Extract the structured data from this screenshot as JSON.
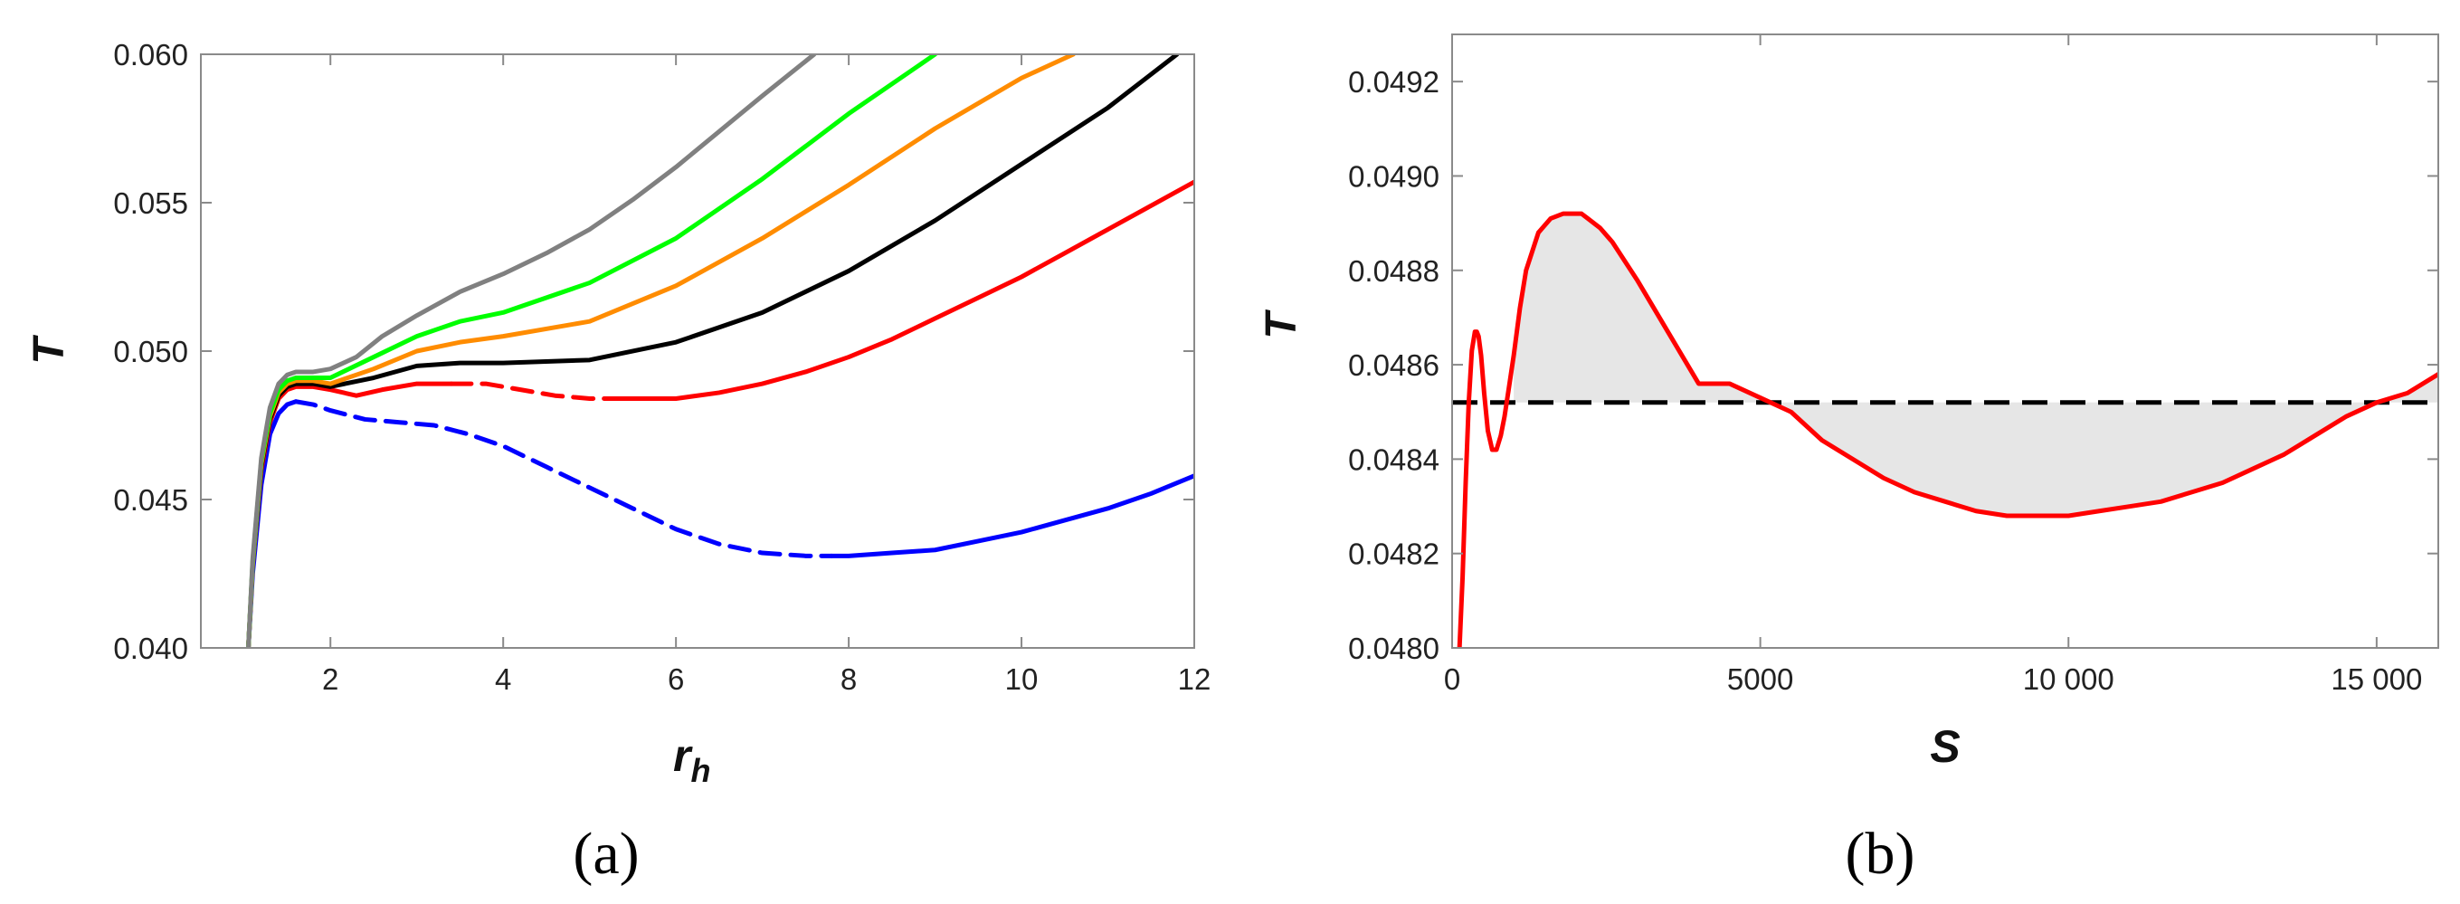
{
  "chart_data": [
    {
      "type": "line",
      "panel_label": "(a)",
      "xlabel": "r",
      "xlabel_sub": "h",
      "ylabel": "T",
      "xlim": [
        0.5,
        12
      ],
      "ylim": [
        0.04,
        0.06
      ],
      "xticks": [
        2,
        4,
        6,
        8,
        10,
        12
      ],
      "xtick_labels": [
        "2",
        "4",
        "6",
        "8",
        "10",
        "12"
      ],
      "yticks": [
        0.04,
        0.045,
        0.05,
        0.055,
        0.06
      ],
      "ytick_labels": [
        "0.040",
        "0.045",
        "0.050",
        "0.055",
        "0.060"
      ],
      "grid": false,
      "series": [
        {
          "color": "#0000ff",
          "segments": [
            {
              "style": "solid",
              "x": [
                1.05,
                1.1,
                1.2,
                1.3,
                1.4,
                1.5,
                1.6
              ],
              "y": [
                0.04,
                0.0425,
                0.0455,
                0.0472,
                0.0479,
                0.0482,
                0.0483
              ]
            },
            {
              "style": "dashed",
              "x": [
                1.6,
                1.8,
                2.0,
                2.4,
                2.8,
                3.2,
                3.6,
                4.0,
                4.5,
                5.0,
                5.5,
                6.0,
                6.5,
                7.0,
                7.5,
                7.8
              ],
              "y": [
                0.0483,
                0.0482,
                0.048,
                0.0477,
                0.0476,
                0.0475,
                0.0472,
                0.0468,
                0.0461,
                0.0454,
                0.0447,
                0.044,
                0.0435,
                0.0432,
                0.0431,
                0.0431
              ]
            },
            {
              "style": "solid",
              "x": [
                7.8,
                8.0,
                8.5,
                9.0,
                9.5,
                10.0,
                10.5,
                11.0,
                11.5,
                12.0
              ],
              "y": [
                0.0431,
                0.0431,
                0.0432,
                0.0433,
                0.0436,
                0.0439,
                0.0443,
                0.0447,
                0.0452,
                0.0458
              ]
            }
          ]
        },
        {
          "color": "#ff0000",
          "segments": [
            {
              "style": "solid",
              "x": [
                1.05,
                1.1,
                1.2,
                1.3,
                1.4,
                1.5,
                1.6,
                1.8,
                2.0,
                2.3,
                2.6,
                3.0,
                3.4
              ],
              "y": [
                0.04,
                0.0428,
                0.046,
                0.0476,
                0.0484,
                0.0487,
                0.0488,
                0.0488,
                0.0487,
                0.0485,
                0.0487,
                0.0489,
                0.0489
              ]
            },
            {
              "style": "dashed",
              "x": [
                3.4,
                3.8,
                4.2,
                4.6,
                5.0,
                5.3
              ],
              "y": [
                0.0489,
                0.0489,
                0.0487,
                0.0485,
                0.0484,
                0.0484
              ]
            },
            {
              "style": "solid",
              "x": [
                5.3,
                5.6,
                6.0,
                6.5,
                7.0,
                7.5,
                8.0,
                8.5,
                9.0,
                9.5,
                10.0,
                10.5,
                11.0,
                11.5,
                12.0
              ],
              "y": [
                0.0484,
                0.0484,
                0.0484,
                0.0486,
                0.0489,
                0.0493,
                0.0498,
                0.0504,
                0.0511,
                0.0518,
                0.0525,
                0.0533,
                0.0541,
                0.0549,
                0.0557
              ]
            }
          ]
        },
        {
          "color": "#000000",
          "segments": [
            {
              "style": "solid",
              "x": [
                1.05,
                1.1,
                1.2,
                1.3,
                1.4,
                1.5,
                1.6,
                1.8,
                2.0,
                2.5,
                3.0,
                3.5,
                4.0,
                5.0,
                6.0,
                7.0,
                8.0,
                9.0,
                10.0,
                11.0,
                11.8
              ],
              "y": [
                0.04,
                0.0428,
                0.0461,
                0.0477,
                0.0485,
                0.0488,
                0.0489,
                0.0489,
                0.0488,
                0.0491,
                0.0495,
                0.0496,
                0.0496,
                0.0497,
                0.0503,
                0.0513,
                0.0527,
                0.0544,
                0.0563,
                0.0582,
                0.06
              ]
            }
          ]
        },
        {
          "color": "#ff8c00",
          "segments": [
            {
              "style": "solid",
              "x": [
                1.05,
                1.1,
                1.2,
                1.3,
                1.4,
                1.5,
                1.6,
                1.8,
                2.0,
                2.5,
                3.0,
                3.5,
                4.0,
                5.0,
                6.0,
                7.0,
                8.0,
                9.0,
                10.0,
                10.6
              ],
              "y": [
                0.04,
                0.0428,
                0.0462,
                0.0478,
                0.0486,
                0.0489,
                0.049,
                0.049,
                0.0489,
                0.0494,
                0.05,
                0.0503,
                0.0505,
                0.051,
                0.0522,
                0.0538,
                0.0556,
                0.0575,
                0.0592,
                0.06
              ]
            }
          ]
        },
        {
          "color": "#00ff00",
          "segments": [
            {
              "style": "solid",
              "x": [
                1.05,
                1.1,
                1.2,
                1.3,
                1.4,
                1.5,
                1.6,
                1.8,
                2.0,
                2.5,
                3.0,
                3.5,
                4.0,
                5.0,
                6.0,
                7.0,
                8.0,
                9.0
              ],
              "y": [
                0.04,
                0.0429,
                0.0463,
                0.0479,
                0.0487,
                0.049,
                0.0491,
                0.0491,
                0.0491,
                0.0498,
                0.0505,
                0.051,
                0.0513,
                0.0523,
                0.0538,
                0.0558,
                0.058,
                0.06
              ]
            }
          ]
        },
        {
          "color": "#808080",
          "segments": [
            {
              "style": "solid",
              "x": [
                1.05,
                1.1,
                1.2,
                1.3,
                1.4,
                1.5,
                1.6,
                1.8,
                2.0,
                2.3,
                2.6,
                3.0,
                3.5,
                4.0,
                4.5,
                5.0,
                5.5,
                6.0,
                6.5,
                7.0,
                7.6
              ],
              "y": [
                0.04,
                0.043,
                0.0464,
                0.0481,
                0.0489,
                0.0492,
                0.0493,
                0.0493,
                0.0494,
                0.0498,
                0.0505,
                0.0512,
                0.052,
                0.0526,
                0.0533,
                0.0541,
                0.0551,
                0.0562,
                0.0574,
                0.0586,
                0.06
              ]
            }
          ]
        }
      ]
    },
    {
      "type": "line",
      "panel_label": "(b)",
      "xlabel": "S",
      "ylabel": "T",
      "xlim": [
        0,
        16000
      ],
      "ylim": [
        0.048,
        0.0493
      ],
      "xticks": [
        0,
        5000,
        10000,
        15000
      ],
      "xtick_labels": [
        "0",
        "5000",
        "10 000",
        "15 000"
      ],
      "yticks": [
        0.048,
        0.0482,
        0.0484,
        0.0486,
        0.0488,
        0.049,
        0.0492
      ],
      "ytick_labels": [
        "0.0480",
        "0.0482",
        "0.0484",
        "0.0486",
        "0.0488",
        "0.0490",
        "0.0492"
      ],
      "grid": false,
      "reference_line": {
        "y": 0.04852,
        "style": "dashed",
        "color": "#000000"
      },
      "fill_color": "#e6e6e6",
      "series": [
        {
          "color": "#ff0000",
          "segments": [
            {
              "style": "solid",
              "x": [
                120,
                170,
                220,
                270,
                320,
                370,
                400,
                430,
                470,
                520,
                580,
                650,
                720,
                790,
                850,
                920,
                1000,
                1100,
                1200,
                1400,
                1600,
                1800,
                2000,
                2100,
                2200,
                2400,
                2600,
                3000,
                3500,
                4000,
                4500,
                5000,
                5500,
                6000,
                6500,
                7000,
                7500,
                8000,
                8500,
                9000,
                9500,
                10000,
                10500,
                11000,
                11500,
                12000,
                12500,
                13000,
                13500,
                14000,
                14500,
                15000,
                15500,
                16000
              ],
              "y": [
                0.048,
                0.04815,
                0.04835,
                0.04852,
                0.04863,
                0.04867,
                0.04867,
                0.04866,
                0.04862,
                0.04854,
                0.04846,
                0.04842,
                0.04842,
                0.04845,
                0.04849,
                0.04855,
                0.04862,
                0.04872,
                0.0488,
                0.04888,
                0.04891,
                0.04892,
                0.04892,
                0.04892,
                0.04891,
                0.04889,
                0.04886,
                0.04878,
                0.04867,
                0.04856,
                0.04856,
                0.04853,
                0.0485,
                0.04844,
                0.0484,
                0.04836,
                0.04833,
                0.04831,
                0.04829,
                0.04828,
                0.04828,
                0.04828,
                0.04829,
                0.0483,
                0.04831,
                0.04833,
                0.04835,
                0.04838,
                0.04841,
                0.04845,
                0.04849,
                0.04852,
                0.04854,
                0.04858
              ]
            }
          ]
        }
      ]
    }
  ]
}
